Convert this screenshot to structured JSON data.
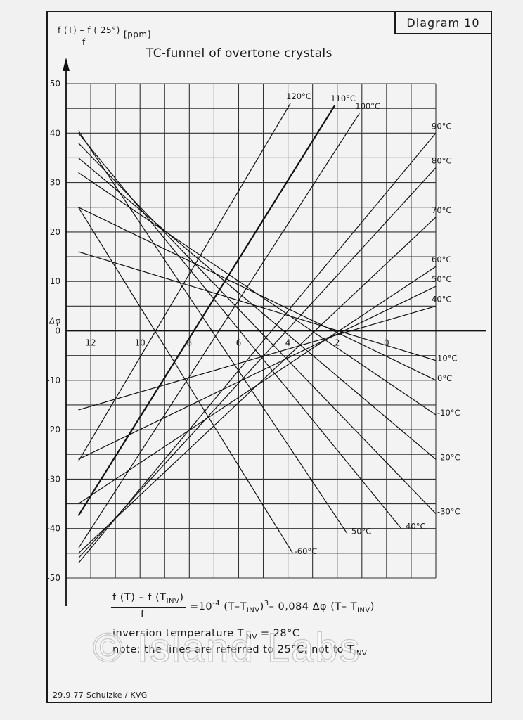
{
  "diagram_label": "Diagram 10",
  "y_axis_label": {
    "numerator": "f (T) – f ( 25°)",
    "denominator": "f",
    "unit": "[ppm]"
  },
  "title": "TC-funnel of overtone crystals",
  "x_axis_symbol": "Δφ",
  "formula": {
    "numerator_main": "f (T) – f (T",
    "numerator_sub": "INV",
    "numerator_end": ")",
    "denominator": "f",
    "rhs_1": "=10",
    "rhs_exp1": "-4",
    "rhs_2": " (T–T",
    "rhs_sub1": "INV",
    "rhs_3": ")",
    "rhs_exp2": "3",
    "rhs_4": "– 0,084 Δφ (T– T",
    "rhs_sub2": "INV",
    "rhs_5": ")"
  },
  "inversion": {
    "text": "inversion temperature  T",
    "sub": "INV",
    "value": " = 28°C"
  },
  "note": {
    "text": "note: the lines are referred to 25°C; not to T",
    "sub": "INV"
  },
  "footer": "29.9.77 Schulzke / KVG",
  "watermark": "© Island Labs",
  "chart_data": {
    "type": "line",
    "title": "TC-funnel of overtone crystals",
    "xlabel": "Δφ",
    "ylabel": "f (T) – f ( 25°) / f [ppm]",
    "xlim": [
      13,
      -2
    ],
    "ylim": [
      -50,
      50
    ],
    "x_reversed": true,
    "grid": true,
    "x_ticks": [
      12,
      10,
      8,
      6,
      4,
      2,
      0
    ],
    "y_ticks": [
      50,
      40,
      30,
      20,
      10,
      0,
      -10,
      -20,
      -30,
      -40,
      -50
    ],
    "series": [
      {
        "name": "120°C",
        "x": [
          12.5,
          3.9
        ],
        "y": [
          -26.4,
          46.0
        ]
      },
      {
        "name": "110°C",
        "x": [
          12.5,
          2.1
        ],
        "y": [
          -37.4,
          45.6
        ]
      },
      {
        "name": "100°C",
        "x": [
          12.5,
          1.1
        ],
        "y": [
          -44.0,
          44.0
        ]
      },
      {
        "name": "90°C",
        "x": [
          12.5,
          -2.0
        ],
        "y": [
          -47.0,
          40.0
        ]
      },
      {
        "name": "80°C",
        "x": [
          12.5,
          -2.0
        ],
        "y": [
          -46.0,
          33.0
        ]
      },
      {
        "name": "70°C",
        "x": [
          12.5,
          -2.0
        ],
        "y": [
          -45.0,
          23.0
        ]
      },
      {
        "name": "60°C",
        "x": [
          12.5,
          -2.0
        ],
        "y": [
          -35.0,
          13.0
        ]
      },
      {
        "name": "50°C",
        "x": [
          12.5,
          -2.0
        ],
        "y": [
          -26.0,
          9.0
        ]
      },
      {
        "name": "40°C",
        "x": [
          12.5,
          -2.0
        ],
        "y": [
          -16.0,
          5.0
        ]
      },
      {
        "name": "10°C",
        "x": [
          12.5,
          -2.0
        ],
        "y": [
          16.0,
          -6.0
        ]
      },
      {
        "name": "0°C",
        "x": [
          12.5,
          -2.0
        ],
        "y": [
          25.0,
          -10.0
        ]
      },
      {
        "name": "-10°C",
        "x": [
          12.5,
          -2.0
        ],
        "y": [
          32.0,
          -17.0
        ]
      },
      {
        "name": "-20°C",
        "x": [
          12.5,
          -2.0
        ],
        "y": [
          35.0,
          -26.0
        ]
      },
      {
        "name": "-30°C",
        "x": [
          12.5,
          -2.0
        ],
        "y": [
          38.0,
          -37.0
        ]
      },
      {
        "name": "-40°C",
        "x": [
          12.5,
          -0.6
        ],
        "y": [
          40.0,
          -40.0
        ]
      },
      {
        "name": "-50°C",
        "x": [
          12.5,
          1.6
        ],
        "y": [
          40.5,
          -41.0
        ]
      },
      {
        "name": "-60°C",
        "x": [
          12.5,
          3.8
        ],
        "y": [
          25.0,
          -45.0
        ]
      }
    ]
  }
}
